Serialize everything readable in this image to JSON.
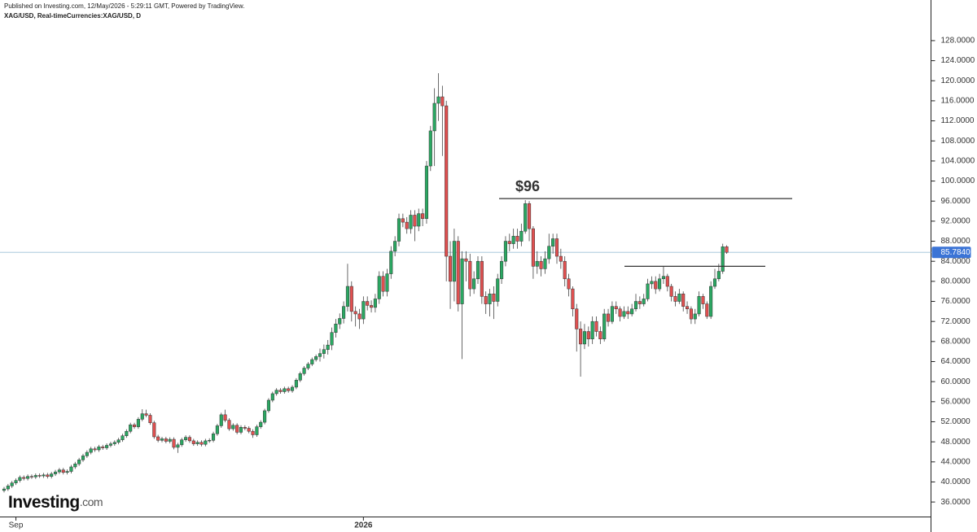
{
  "header": {
    "published": "Published on Investing.com, 12/May/2026 - 5:29:11 GMT, Powered by TradingView.",
    "symbol": "XAG/USD, Real-timeCurrencies:XAG/USD, D"
  },
  "logo": {
    "name": "Investing",
    "suffix": ".com"
  },
  "chart_data": {
    "type": "candlestick",
    "up_color": "#2aa862",
    "down_color": "#e05050",
    "categories": [
      null,
      null,
      null,
      "Sep",
      null,
      null,
      null,
      null,
      null,
      null,
      null,
      null,
      null,
      null,
      null,
      null,
      null,
      null,
      null,
      null,
      null,
      null,
      null,
      null,
      null,
      null,
      null,
      null,
      null,
      null,
      null,
      null,
      null,
      null,
      null,
      null,
      null,
      null,
      null,
      null,
      null,
      null,
      null,
      null,
      null,
      null,
      null,
      null,
      null,
      null,
      null,
      null,
      null,
      null,
      null,
      null,
      null,
      null,
      null,
      null,
      null,
      null,
      null,
      null,
      null,
      null,
      null,
      null,
      null,
      null,
      null,
      null,
      null,
      null,
      null,
      null,
      null,
      null,
      null,
      null,
      null,
      null,
      null,
      null,
      null,
      null,
      null,
      null,
      null,
      null,
      null,
      "2026",
      null,
      null,
      null,
      null,
      null,
      null,
      null,
      null,
      null,
      null,
      null,
      null,
      null,
      null,
      null,
      null,
      null,
      null,
      null,
      null,
      null,
      null,
      null,
      null,
      null,
      null,
      null,
      null,
      null,
      null,
      null,
      null,
      null,
      null,
      null,
      null,
      null,
      null,
      null,
      null,
      null,
      null,
      null,
      null,
      null,
      null,
      null,
      null,
      null,
      null,
      null,
      null,
      null,
      null,
      null,
      null,
      null,
      null,
      null,
      null,
      null,
      null,
      null,
      null,
      null,
      null,
      null,
      null,
      null,
      null,
      null,
      null,
      null,
      null,
      null,
      null,
      null,
      null,
      null,
      null,
      null,
      null,
      null,
      null,
      null,
      null,
      null,
      null,
      null,
      null,
      null,
      null
    ],
    "open": [
      38.3,
      38.6,
      39.2,
      39.8,
      40.3,
      40.9,
      40.7,
      41.1,
      41.0,
      41.3,
      41.2,
      41.4,
      41.1,
      41.6,
      42.0,
      42.4,
      41.9,
      42.1,
      43.0,
      43.6,
      44.4,
      45.2,
      45.9,
      46.6,
      46.4,
      47.0,
      46.8,
      47.3,
      47.6,
      47.9,
      48.4,
      49.2,
      50.1,
      51.4,
      51.0,
      52.5,
      53.6,
      53.3,
      51.8,
      49.0,
      48.3,
      48.6,
      48.1,
      48.5,
      46.9,
      47.4,
      48.4,
      48.9,
      48.2,
      47.6,
      47.9,
      47.5,
      48.2,
      48.3,
      49.6,
      51.2,
      53.4,
      52.3,
      50.6,
      51.3,
      49.9,
      50.9,
      50.7,
      50.1,
      49.4,
      51.0,
      51.9,
      54.2,
      56.3,
      57.6,
      58.3,
      58.0,
      58.6,
      58.2,
      58.9,
      60.3,
      61.6,
      62.7,
      63.5,
      64.4,
      65.0,
      65.6,
      66.4,
      67.3,
      69.8,
      71.5,
      72.6,
      75.0,
      79.0,
      74.0,
      73.5,
      72.5,
      76.0,
      75.2,
      74.8,
      76.5,
      81.0,
      78.0,
      81.5,
      86.0,
      88.0,
      92.5,
      91.8,
      90.5,
      93.2,
      91.0,
      93.5,
      92.5,
      103.0,
      110.0,
      115.5,
      116.8,
      115.0,
      85.0,
      80.0,
      88.0,
      75.5,
      84.5,
      84.0,
      78.5,
      80.5,
      84.0,
      77.0,
      75.5,
      77.5,
      76.0,
      80.5,
      84.0,
      88.0,
      87.5,
      89.0,
      88.0,
      90.0,
      95.5,
      90.5,
      83.0,
      84.0,
      82.5,
      84.5,
      87.0,
      88.5,
      85.0,
      84.0,
      80.5,
      78.5,
      74.5,
      70.5,
      67.5,
      70.0,
      68.5,
      72.0,
      70.0,
      68.5,
      73.5,
      72.0,
      75.0,
      74.5,
      73.0,
      74.0,
      73.5,
      74.5,
      76.0,
      75.5,
      76.5,
      79.5,
      80.0,
      78.5,
      80.5,
      81.0,
      79.0,
      77.0,
      76.0,
      77.5,
      75.0,
      74.5,
      72.5,
      73.5,
      77.0,
      75.5,
      73.0,
      79.0,
      80.5,
      82.0,
      86.9
    ],
    "high": [
      39.0,
      39.6,
      40.2,
      40.7,
      41.3,
      41.3,
      41.5,
      41.5,
      41.7,
      41.7,
      41.8,
      41.8,
      42.0,
      42.4,
      42.8,
      42.8,
      42.5,
      43.4,
      44.0,
      44.8,
      45.6,
      46.3,
      47.0,
      47.0,
      47.4,
      47.4,
      47.7,
      48.0,
      48.3,
      48.8,
      49.6,
      50.5,
      51.8,
      51.8,
      52.9,
      54.5,
      54.4,
      53.7,
      52.2,
      49.4,
      49.0,
      49.0,
      48.9,
      48.9,
      47.8,
      48.8,
      49.3,
      49.3,
      48.6,
      48.3,
      48.3,
      48.6,
      48.7,
      50.0,
      51.6,
      53.8,
      54.4,
      52.7,
      51.7,
      51.7,
      51.3,
      51.3,
      51.1,
      50.5,
      51.4,
      52.3,
      54.6,
      56.7,
      58.0,
      58.7,
      58.7,
      59.0,
      59.0,
      59.3,
      60.7,
      62.0,
      63.1,
      63.9,
      64.8,
      65.4,
      66.6,
      67.4,
      68.3,
      70.8,
      72.5,
      73.6,
      76.0,
      83.5,
      80.0,
      75.0,
      74.5,
      77.0,
      77.0,
      76.2,
      77.5,
      82.0,
      82.0,
      82.5,
      87.0,
      89.0,
      93.5,
      93.5,
      92.8,
      94.2,
      94.2,
      94.5,
      94.5,
      104.0,
      111.0,
      118.5,
      121.5,
      119.0,
      116.0,
      88.0,
      90.5,
      89.0,
      86.0,
      86.0,
      85.5,
      82.0,
      85.0,
      85.0,
      78.0,
      78.5,
      79.0,
      81.5,
      85.0,
      89.0,
      89.5,
      90.5,
      90.5,
      91.5,
      96.2,
      96.0,
      91.0,
      86.0,
      85.0,
      86.0,
      89.5,
      89.5,
      89.5,
      86.5,
      85.0,
      81.5,
      79.0,
      75.5,
      72.0,
      71.5,
      71.0,
      73.0,
      73.0,
      71.0,
      74.5,
      74.5,
      76.0,
      76.0,
      75.0,
      75.0,
      75.0,
      75.5,
      77.5,
      77.0,
      77.5,
      80.5,
      81.0,
      81.0,
      81.5,
      83.0,
      81.5,
      79.5,
      78.0,
      78.5,
      78.0,
      76.0,
      75.0,
      74.5,
      78.0,
      77.5,
      76.0,
      80.0,
      82.5,
      83.5,
      87.5,
      87.2
    ],
    "low": [
      37.9,
      38.2,
      38.8,
      39.4,
      39.9,
      40.3,
      40.3,
      40.6,
      40.6,
      40.8,
      40.8,
      40.7,
      40.7,
      41.2,
      41.6,
      41.5,
      41.5,
      41.7,
      42.6,
      43.2,
      44.0,
      44.8,
      45.5,
      46.0,
      46.0,
      46.4,
      46.4,
      46.9,
      47.2,
      47.5,
      48.0,
      48.8,
      49.7,
      50.6,
      50.6,
      52.1,
      52.9,
      51.4,
      48.6,
      47.9,
      47.9,
      47.7,
      47.7,
      46.5,
      45.8,
      47.0,
      48.0,
      47.8,
      47.2,
      47.2,
      47.1,
      47.1,
      47.8,
      47.9,
      49.2,
      50.8,
      51.9,
      50.2,
      50.2,
      49.5,
      49.5,
      50.3,
      49.7,
      48.8,
      49.0,
      50.6,
      51.5,
      53.8,
      55.9,
      57.2,
      57.6,
      57.6,
      57.8,
      57.8,
      58.5,
      59.9,
      61.2,
      62.3,
      63.1,
      64.0,
      64.0,
      64.6,
      65.4,
      66.3,
      68.8,
      70.5,
      71.6,
      74.0,
      72.0,
      71.0,
      70.5,
      71.5,
      74.2,
      73.8,
      73.8,
      75.5,
      77.0,
      77.0,
      80.5,
      85.0,
      87.0,
      90.8,
      89.5,
      89.5,
      88.0,
      90.0,
      91.0,
      91.5,
      102.0,
      103.0,
      112.0,
      105.0,
      80.0,
      74.5,
      76.0,
      74.0,
      64.5,
      80.0,
      77.0,
      77.5,
      79.5,
      75.5,
      73.5,
      73.0,
      72.5,
      75.0,
      79.5,
      83.0,
      86.0,
      86.5,
      86.5,
      87.0,
      89.5,
      88.0,
      80.5,
      81.5,
      81.0,
      81.5,
      83.5,
      85.5,
      83.5,
      82.5,
      79.0,
      77.0,
      73.0,
      66.0,
      61.0,
      66.5,
      67.0,
      67.5,
      69.0,
      67.5,
      68.0,
      71.0,
      71.5,
      73.5,
      72.0,
      72.5,
      72.5,
      73.0,
      74.0,
      74.5,
      75.0,
      76.0,
      78.5,
      77.5,
      78.0,
      79.5,
      78.0,
      76.0,
      75.0,
      75.5,
      74.0,
      73.5,
      71.5,
      71.5,
      73.0,
      74.5,
      72.5,
      72.5,
      78.5,
      80.0,
      81.5,
      85.5
    ],
    "close": [
      38.6,
      39.2,
      39.8,
      40.3,
      40.9,
      40.7,
      41.1,
      41.0,
      41.3,
      41.2,
      41.4,
      41.1,
      41.6,
      42.0,
      42.4,
      41.9,
      42.1,
      43.0,
      43.6,
      44.4,
      45.2,
      45.9,
      46.6,
      46.4,
      47.0,
      46.8,
      47.3,
      47.6,
      47.9,
      48.4,
      49.2,
      50.1,
      51.4,
      51.0,
      52.5,
      53.6,
      53.3,
      51.8,
      49.0,
      48.3,
      48.6,
      48.1,
      48.5,
      46.9,
      47.4,
      48.4,
      48.9,
      48.2,
      47.6,
      47.9,
      47.5,
      48.2,
      48.3,
      49.6,
      51.2,
      53.4,
      52.3,
      50.6,
      51.3,
      49.9,
      50.9,
      50.7,
      50.1,
      49.4,
      51.0,
      51.9,
      54.2,
      56.3,
      57.6,
      58.3,
      58.0,
      58.6,
      58.2,
      58.9,
      60.3,
      61.6,
      62.7,
      63.5,
      64.4,
      65.0,
      65.6,
      66.4,
      67.3,
      69.8,
      71.5,
      72.6,
      75.0,
      79.0,
      74.0,
      73.5,
      72.5,
      76.0,
      75.2,
      74.8,
      76.5,
      81.0,
      78.0,
      81.5,
      86.0,
      88.0,
      92.5,
      91.8,
      90.5,
      93.2,
      91.0,
      93.5,
      92.5,
      103.0,
      110.0,
      115.5,
      116.8,
      115.0,
      85.0,
      80.0,
      88.0,
      75.5,
      84.5,
      84.0,
      78.5,
      80.5,
      84.0,
      77.0,
      75.5,
      77.5,
      76.0,
      80.5,
      84.0,
      88.0,
      87.5,
      89.0,
      88.0,
      90.0,
      95.5,
      90.5,
      83.0,
      84.0,
      82.5,
      84.5,
      87.0,
      88.5,
      85.0,
      84.0,
      80.5,
      78.5,
      74.5,
      70.5,
      67.5,
      70.0,
      68.5,
      72.0,
      70.0,
      68.5,
      73.5,
      72.0,
      75.0,
      74.5,
      73.0,
      74.0,
      73.5,
      74.5,
      76.0,
      75.5,
      76.5,
      79.5,
      80.0,
      78.5,
      80.5,
      81.0,
      79.0,
      77.0,
      76.0,
      77.5,
      75.0,
      74.5,
      72.5,
      73.5,
      77.0,
      75.5,
      73.0,
      79.0,
      80.5,
      82.0,
      86.9,
      85.784
    ],
    "ylim": [
      33.1,
      136.1
    ],
    "yticks": [
      {
        "value": 36,
        "label": "36.0000"
      },
      {
        "value": 40,
        "label": "40.0000"
      },
      {
        "value": 44,
        "label": "44.0000"
      },
      {
        "value": 48,
        "label": "48.0000"
      },
      {
        "value": 52,
        "label": "52.0000"
      },
      {
        "value": 56,
        "label": "56.0000"
      },
      {
        "value": 60,
        "label": "60.0000"
      },
      {
        "value": 64,
        "label": "64.0000"
      },
      {
        "value": 68,
        "label": "68.0000"
      },
      {
        "value": 72,
        "label": "72.0000"
      },
      {
        "value": 76,
        "label": "76.0000"
      },
      {
        "value": 80,
        "label": "80.0000"
      },
      {
        "value": 84,
        "label": "84.0000"
      },
      {
        "value": 88,
        "label": "88.0000"
      },
      {
        "value": 92,
        "label": "92.0000"
      },
      {
        "value": 96,
        "label": "96.0000"
      },
      {
        "value": 100,
        "label": "100.0000"
      },
      {
        "value": 104,
        "label": "104.0000"
      },
      {
        "value": 108,
        "label": "108.0000"
      },
      {
        "value": 112,
        "label": "112.0000"
      },
      {
        "value": 116,
        "label": "116.0000"
      },
      {
        "value": 120,
        "label": "120.0000"
      },
      {
        "value": 124,
        "label": "124.0000"
      },
      {
        "value": 128,
        "label": "128.0000"
      }
    ],
    "last_price": {
      "value": 85.784,
      "label": "85.7840",
      "color": "#3b74d6"
    },
    "annotations": [
      {
        "text": "$96",
        "value": 96.5
      },
      {
        "value": 83.0
      }
    ]
  }
}
